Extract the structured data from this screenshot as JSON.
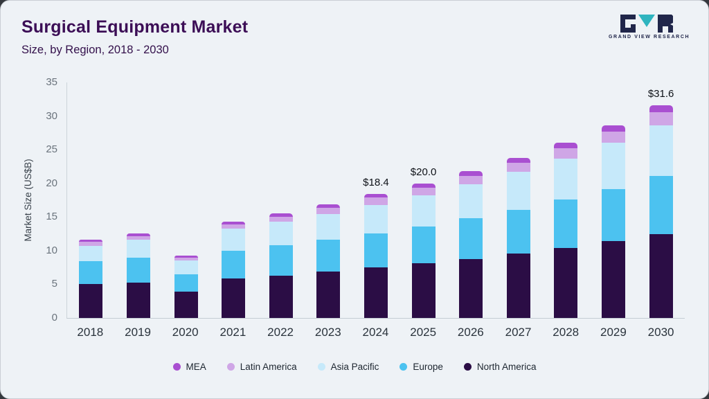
{
  "header": {
    "title": "Surgical Equipment Market",
    "subtitle": "Size, by Region, 2018 - 2030"
  },
  "logo": {
    "brand": "GRAND VIEW RESEARCH",
    "mark_dark_color": "#20264a",
    "mark_teal_color": "#2fb4bf"
  },
  "chart_data": {
    "type": "bar",
    "stacked": true,
    "title": "Surgical Equipment Market Size, by Region, 2018 - 2030",
    "xlabel": "",
    "ylabel": "Market Size (US$B)",
    "ylim": [
      0,
      35
    ],
    "yticks": [
      0,
      5,
      10,
      15,
      20,
      25,
      30,
      35
    ],
    "grid": false,
    "legend_position": "bottom",
    "categories": [
      "2018",
      "2019",
      "2020",
      "2021",
      "2022",
      "2023",
      "2024",
      "2025",
      "2026",
      "2027",
      "2028",
      "2029",
      "2030"
    ],
    "series": [
      {
        "name": "North America",
        "color": "#2b0d45",
        "values": [
          5.0,
          5.3,
          3.9,
          5.9,
          6.3,
          6.9,
          7.5,
          8.1,
          8.8,
          9.6,
          10.4,
          11.4,
          12.5
        ]
      },
      {
        "name": "Europe",
        "color": "#4cc2f0",
        "values": [
          3.4,
          3.7,
          2.6,
          4.1,
          4.5,
          4.7,
          5.1,
          5.5,
          6.0,
          6.5,
          7.2,
          7.8,
          8.6
        ]
      },
      {
        "name": "Asia Pacific",
        "color": "#c6e9fa",
        "values": [
          2.3,
          2.6,
          2.0,
          3.3,
          3.5,
          3.8,
          4.2,
          4.6,
          5.1,
          5.6,
          6.1,
          6.8,
          7.5
        ]
      },
      {
        "name": "Latin America",
        "color": "#cfa6e6",
        "values": [
          0.6,
          0.6,
          0.5,
          0.6,
          0.7,
          1.0,
          1.1,
          1.2,
          1.2,
          1.4,
          1.5,
          1.7,
          2.0
        ]
      },
      {
        "name": "MEA",
        "color": "#a94fd1",
        "values": [
          0.3,
          0.4,
          0.3,
          0.4,
          0.5,
          0.5,
          0.5,
          0.6,
          0.7,
          0.7,
          0.8,
          0.9,
          1.0
        ]
      }
    ],
    "totals": [
      11.6,
      12.6,
      9.3,
      14.3,
      15.5,
      16.9,
      18.4,
      20.0,
      21.8,
      23.8,
      26.0,
      28.6,
      31.6
    ],
    "value_labels": {
      "2024": "$18.4",
      "2025": "$20.0",
      "2030": "$31.6"
    },
    "legend": [
      "MEA",
      "Latin America",
      "Asia Pacific",
      "Europe",
      "North America"
    ]
  }
}
